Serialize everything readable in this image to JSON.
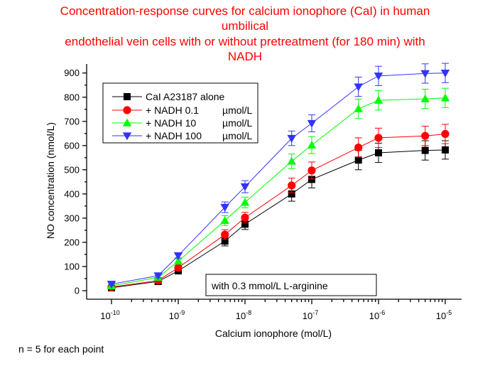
{
  "chart_data": {
    "type": "line",
    "title_lines": [
      "Concentration-response curves for calcium ionophore (CaI) in human",
      "umbilical",
      "endothelial vein cells with or without pretreatment (for 180 min) with",
      "NADH"
    ],
    "xlabel": "Calcium ionophore (mol/L)",
    "ylabel": "NO concentration (nmol/L)",
    "x_scale": "log",
    "x_ticks": [
      {
        "base": "10",
        "exp": "-10",
        "value": 1e-10
      },
      {
        "base": "10",
        "exp": "-9",
        "value": 1e-09
      },
      {
        "base": "10",
        "exp": "-8",
        "value": 1e-08
      },
      {
        "base": "10",
        "exp": "-7",
        "value": 1e-07
      },
      {
        "base": "10",
        "exp": "-6",
        "value": 1e-06
      },
      {
        "base": "10",
        "exp": "-5",
        "value": 1e-05
      }
    ],
    "ylim": [
      0,
      900
    ],
    "y_ticks": [
      0,
      100,
      200,
      300,
      400,
      500,
      600,
      700,
      800,
      900
    ],
    "x": [
      1e-10,
      5e-10,
      1e-09,
      5e-09,
      1e-08,
      5e-08,
      1e-07,
      5e-07,
      1e-06,
      5e-06,
      1e-05
    ],
    "series": [
      {
        "name": "CaI A23187 alone",
        "unit": "",
        "color": "#000000",
        "marker": "square",
        "values": [
          12,
          38,
          82,
          205,
          275,
          400,
          460,
          540,
          570,
          580,
          582
        ],
        "errors": [
          5,
          8,
          10,
          20,
          22,
          30,
          35,
          40,
          40,
          40,
          38
        ]
      },
      {
        "name": "+ NADH 0.1",
        "unit": "µmol/L",
        "color": "#ff0000",
        "marker": "circle",
        "values": [
          15,
          42,
          95,
          232,
          302,
          435,
          497,
          592,
          632,
          640,
          648
        ],
        "errors": [
          5,
          8,
          10,
          20,
          22,
          30,
          35,
          40,
          40,
          40,
          40
        ]
      },
      {
        "name": "+ NADH 10",
        "unit": "µmol/L",
        "color": "#00ff00",
        "marker": "triangle-up",
        "values": [
          20,
          55,
          122,
          290,
          365,
          535,
          602,
          752,
          787,
          793,
          797
        ],
        "errors": [
          5,
          8,
          10,
          20,
          22,
          30,
          35,
          40,
          40,
          40,
          40
        ]
      },
      {
        "name": "+ NADH 100",
        "unit": "µmol/L",
        "color": "#3333ff",
        "marker": "triangle-down",
        "values": [
          27,
          62,
          145,
          345,
          430,
          630,
          692,
          843,
          888,
          898,
          900
        ],
        "errors": [
          5,
          8,
          10,
          22,
          25,
          30,
          35,
          40,
          40,
          40,
          40
        ]
      }
    ],
    "annotation": "with 0.3 mmol/L L-arginine",
    "footnote": "n = 5 for each point",
    "legend_position": "top-left",
    "grid": false
  }
}
